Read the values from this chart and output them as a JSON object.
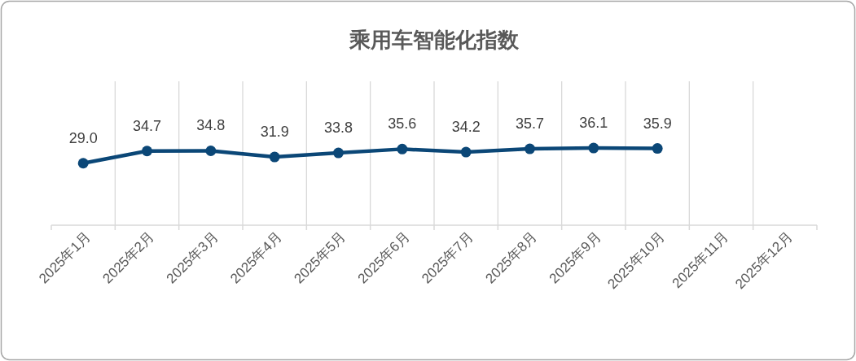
{
  "chart_data": {
    "type": "line",
    "title": "乘用车智能化指数",
    "categories": [
      "2025年1月",
      "2025年2月",
      "2025年3月",
      "2025年4月",
      "2025年5月",
      "2025年6月",
      "2025年7月",
      "2025年8月",
      "2025年9月",
      "2025年10月",
      "2025年11月",
      "2025年12月"
    ],
    "series": [
      {
        "color": "#0b4777",
        "values": [
          29.0,
          34.7,
          34.8,
          31.9,
          33.8,
          35.6,
          34.2,
          35.7,
          36.1,
          35.9,
          null,
          null
        ],
        "value_labels": [
          "29.0",
          "34.7",
          "34.8",
          "31.9",
          "33.8",
          "35.6",
          "34.2",
          "35.7",
          "36.1",
          "35.9",
          null,
          null
        ]
      }
    ],
    "grid": "x",
    "marker": "circle",
    "line_style": "solid"
  }
}
